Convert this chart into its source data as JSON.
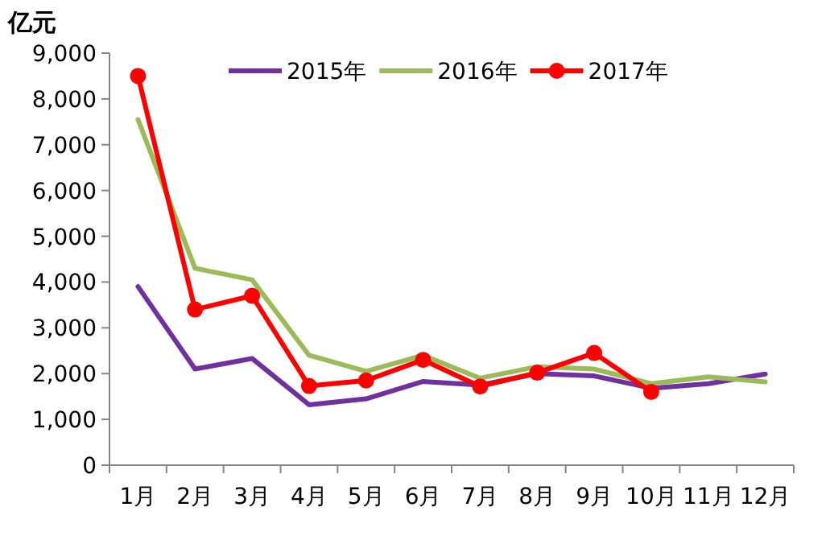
{
  "chart_data": {
    "type": "line",
    "ylabel": "亿元",
    "categories": [
      "1月",
      "2月",
      "3月",
      "4月",
      "5月",
      "6月",
      "7月",
      "8月",
      "9月",
      "10月",
      "11月",
      "12月"
    ],
    "series": [
      {
        "name": "2015年",
        "color": "#7030a0",
        "marker": "none",
        "values": [
          3900,
          2100,
          2330,
          1320,
          1450,
          1830,
          1750,
          2000,
          1950,
          1680,
          1780,
          1990
        ]
      },
      {
        "name": "2016年",
        "color": "#9bbb59",
        "marker": "none",
        "values": [
          7550,
          4300,
          4050,
          2400,
          2050,
          2400,
          1900,
          2150,
          2100,
          1780,
          1930,
          1820
        ]
      },
      {
        "name": "2017年",
        "color": "#ff0000",
        "marker": "circle",
        "values": [
          8500,
          3400,
          3700,
          1730,
          1850,
          2300,
          1720,
          2020,
          2450,
          1600,
          null,
          null
        ]
      }
    ],
    "ylim": [
      0,
      9000
    ],
    "yticks": [
      0,
      {
        "value": 1000,
        "label": "1,000"
      },
      {
        "value": 2000,
        "label": "2,000"
      },
      {
        "value": 3000,
        "label": "3,000"
      },
      {
        "value": 4000,
        "label": "4,000"
      },
      {
        "value": 5000,
        "label": "5,000"
      },
      {
        "value": 6000,
        "label": "6,000"
      },
      {
        "value": 7000,
        "label": "7,000"
      },
      {
        "value": 8000,
        "label": "8,000"
      },
      {
        "value": 9000,
        "label": "9,000"
      }
    ],
    "legend": "top"
  }
}
